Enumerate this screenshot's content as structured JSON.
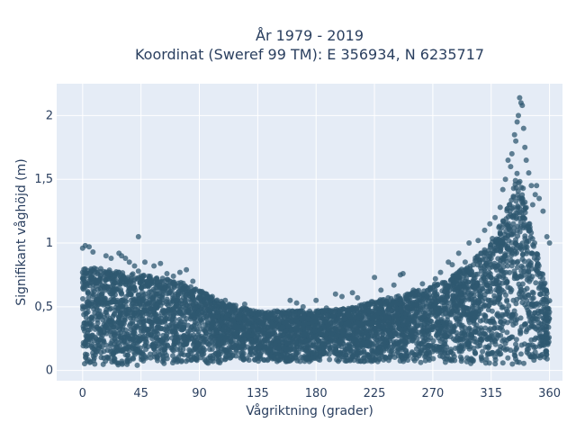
{
  "chart_data": {
    "type": "scatter",
    "title_line1": "År 1979 - 2019",
    "title_line2": "Koordinat (Sweref 99 TM): E 356934, N 6235717",
    "xlabel": "Vågriktning (grader)",
    "ylabel": "Signifikant våghöjd (m)",
    "xlim": [
      -20,
      370
    ],
    "ylim": [
      -0.08,
      2.25
    ],
    "xticks": [
      0,
      45,
      90,
      135,
      180,
      225,
      270,
      315,
      360
    ],
    "xtick_labels": [
      "0",
      "45",
      "90",
      "135",
      "180",
      "225",
      "270",
      "315",
      "360"
    ],
    "yticks": [
      0,
      0.5,
      1,
      1.5,
      2
    ],
    "ytick_labels": [
      "0",
      "0,5",
      "1",
      "1,5",
      "2"
    ],
    "grid": true,
    "legend": "none",
    "marker_color": "#2f5870",
    "plot_background": "#e5ecf6",
    "density_envelope": {
      "x": [
        0,
        15,
        30,
        45,
        60,
        75,
        90,
        105,
        120,
        135,
        150,
        165,
        180,
        195,
        210,
        225,
        240,
        255,
        270,
        285,
        300,
        315,
        325,
        330,
        335,
        340,
        345,
        350,
        360
      ],
      "y_min": [
        0.04,
        0.04,
        0.04,
        0.04,
        0.04,
        0.05,
        0.05,
        0.06,
        0.07,
        0.07,
        0.07,
        0.07,
        0.07,
        0.07,
        0.07,
        0.07,
        0.07,
        0.06,
        0.06,
        0.06,
        0.05,
        0.05,
        0.05,
        0.05,
        0.05,
        0.05,
        0.05,
        0.05,
        0.05
      ],
      "y_max": [
        0.82,
        0.8,
        0.77,
        0.75,
        0.73,
        0.7,
        0.63,
        0.55,
        0.5,
        0.47,
        0.47,
        0.47,
        0.47,
        0.48,
        0.5,
        0.55,
        0.58,
        0.62,
        0.67,
        0.75,
        0.85,
        1.02,
        1.2,
        1.35,
        1.55,
        1.45,
        1.15,
        0.95,
        0.55
      ]
    },
    "outliers": [
      {
        "x": 0,
        "y": 0.96
      },
      {
        "x": 2,
        "y": 0.98
      },
      {
        "x": 5,
        "y": 0.97
      },
      {
        "x": 8,
        "y": 0.93
      },
      {
        "x": 18,
        "y": 0.9
      },
      {
        "x": 22,
        "y": 0.88
      },
      {
        "x": 28,
        "y": 0.92
      },
      {
        "x": 30,
        "y": 0.9
      },
      {
        "x": 33,
        "y": 0.88
      },
      {
        "x": 36,
        "y": 0.85
      },
      {
        "x": 40,
        "y": 0.82
      },
      {
        "x": 43,
        "y": 0.78
      },
      {
        "x": 43,
        "y": 1.05
      },
      {
        "x": 48,
        "y": 0.85
      },
      {
        "x": 55,
        "y": 0.82
      },
      {
        "x": 60,
        "y": 0.84
      },
      {
        "x": 65,
        "y": 0.76
      },
      {
        "x": 70,
        "y": 0.74
      },
      {
        "x": 75,
        "y": 0.77
      },
      {
        "x": 80,
        "y": 0.79
      },
      {
        "x": 85,
        "y": 0.7
      },
      {
        "x": 92,
        "y": 0.62
      },
      {
        "x": 100,
        "y": 0.58
      },
      {
        "x": 110,
        "y": 0.55
      },
      {
        "x": 118,
        "y": 0.51
      },
      {
        "x": 125,
        "y": 0.52
      },
      {
        "x": 160,
        "y": 0.55
      },
      {
        "x": 165,
        "y": 0.53
      },
      {
        "x": 170,
        "y": 0.5
      },
      {
        "x": 180,
        "y": 0.55
      },
      {
        "x": 188,
        "y": 0.49
      },
      {
        "x": 195,
        "y": 0.6
      },
      {
        "x": 200,
        "y": 0.58
      },
      {
        "x": 208,
        "y": 0.61
      },
      {
        "x": 212,
        "y": 0.57
      },
      {
        "x": 225,
        "y": 0.73
      },
      {
        "x": 230,
        "y": 0.63
      },
      {
        "x": 240,
        "y": 0.67
      },
      {
        "x": 245,
        "y": 0.75
      },
      {
        "x": 247,
        "y": 0.76
      },
      {
        "x": 255,
        "y": 0.63
      },
      {
        "x": 262,
        "y": 0.68
      },
      {
        "x": 268,
        "y": 0.65
      },
      {
        "x": 272,
        "y": 0.72
      },
      {
        "x": 276,
        "y": 0.77
      },
      {
        "x": 282,
        "y": 0.85
      },
      {
        "x": 285,
        "y": 0.83
      },
      {
        "x": 290,
        "y": 0.92
      },
      {
        "x": 295,
        "y": 0.85
      },
      {
        "x": 298,
        "y": 1.0
      },
      {
        "x": 305,
        "y": 1.02
      },
      {
        "x": 310,
        "y": 1.1
      },
      {
        "x": 314,
        "y": 1.15
      },
      {
        "x": 318,
        "y": 1.2
      },
      {
        "x": 322,
        "y": 1.28
      },
      {
        "x": 324,
        "y": 1.42
      },
      {
        "x": 326,
        "y": 1.5
      },
      {
        "x": 328,
        "y": 1.65
      },
      {
        "x": 330,
        "y": 1.6
      },
      {
        "x": 331,
        "y": 1.7
      },
      {
        "x": 333,
        "y": 1.85
      },
      {
        "x": 334,
        "y": 1.8
      },
      {
        "x": 335,
        "y": 1.95
      },
      {
        "x": 336,
        "y": 2.0
      },
      {
        "x": 337,
        "y": 2.14
      },
      {
        "x": 338,
        "y": 2.1
      },
      {
        "x": 339,
        "y": 2.08
      },
      {
        "x": 340,
        "y": 1.9
      },
      {
        "x": 341,
        "y": 1.75
      },
      {
        "x": 342,
        "y": 1.65
      },
      {
        "x": 344,
        "y": 1.55
      },
      {
        "x": 346,
        "y": 1.45
      },
      {
        "x": 350,
        "y": 1.45
      },
      {
        "x": 352,
        "y": 1.35
      },
      {
        "x": 355,
        "y": 1.25
      },
      {
        "x": 358,
        "y": 1.05
      },
      {
        "x": 360,
        "y": 1.0
      },
      {
        "x": 349,
        "y": 1.38
      },
      {
        "x": 347,
        "y": 1.3
      }
    ]
  }
}
